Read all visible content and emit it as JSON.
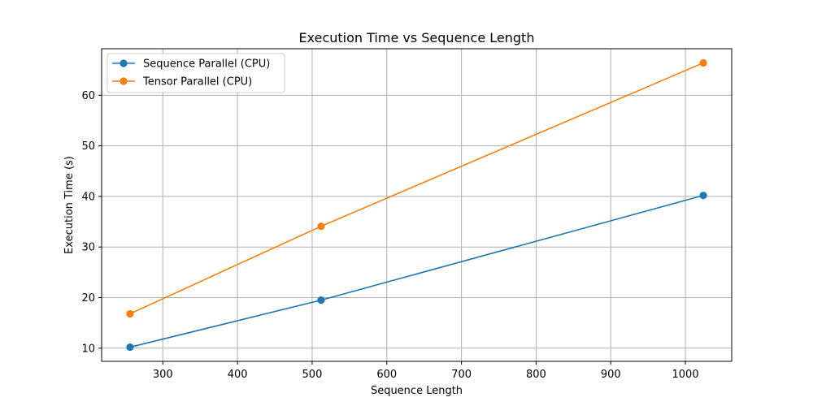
{
  "chart_data": {
    "type": "line",
    "title": "Execution Time vs Sequence Length",
    "xlabel": "Sequence Length",
    "ylabel": "Execution Time (s)",
    "x": [
      256,
      512,
      1024
    ],
    "series": [
      {
        "name": "Sequence Parallel (CPU)",
        "color": "#1f77b4",
        "values": [
          10.2,
          19.5,
          40.2
        ]
      },
      {
        "name": "Tensor Parallel (CPU)",
        "color": "#ff7f0e",
        "values": [
          16.8,
          34.1,
          66.4
        ]
      }
    ],
    "xlim": [
      218,
      1062
    ],
    "ylim": [
      7.4,
      69.2
    ],
    "xticks": [
      300,
      400,
      500,
      600,
      700,
      800,
      900,
      1000
    ],
    "yticks": [
      10,
      20,
      30,
      40,
      50,
      60
    ],
    "grid": true,
    "legend_position": "top-left",
    "marker": "circle"
  }
}
